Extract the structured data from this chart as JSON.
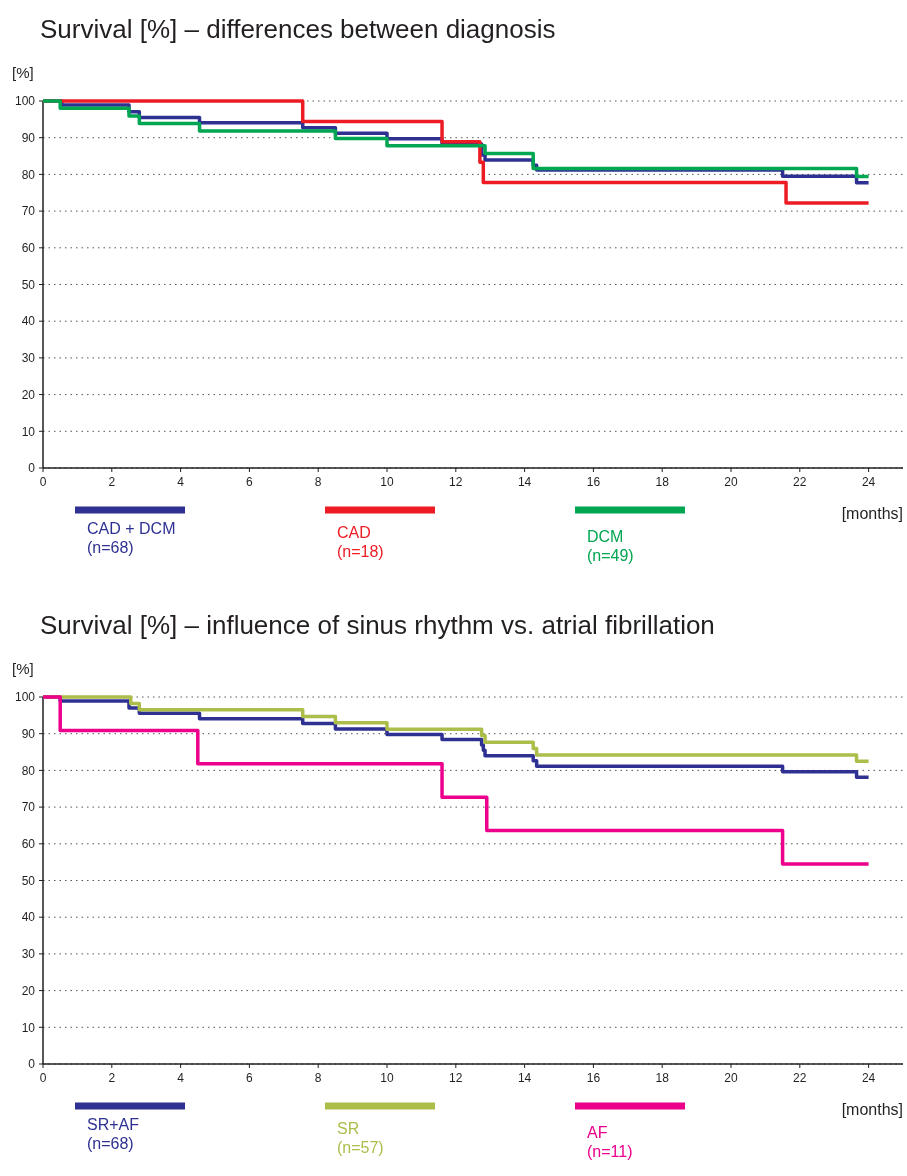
{
  "chart_data": [
    {
      "type": "step",
      "title": "Survival [%] – differences between diagnosis",
      "xlabel": "[months]",
      "ylabel": "[%]",
      "xlim": [
        0,
        25
      ],
      "xticks": [
        0,
        2,
        4,
        6,
        8,
        10,
        12,
        14,
        16,
        18,
        20,
        22,
        24
      ],
      "ylim": [
        0,
        100
      ],
      "yticks": [
        0,
        10,
        20,
        30,
        40,
        50,
        60,
        70,
        80,
        90,
        100
      ],
      "grid": "y",
      "legend": "bottom",
      "line_style": "solid",
      "series": [
        {
          "name": "CAD + DCM (n=68)",
          "color": "#2e3192",
          "x": [
            0,
            0.55,
            2.5,
            2.8,
            4.55,
            7.55,
            8.5,
            10,
            11.6,
            12.75,
            12.85,
            14.25,
            14.35,
            21.5,
            23.65,
            24
          ],
          "values": [
            100,
            98.9,
            97.1,
            95.5,
            94.1,
            92.7,
            91.2,
            89.7,
            88.3,
            85.3,
            83.9,
            82.5,
            81.2,
            79.5,
            77.7,
            77.7
          ]
        },
        {
          "name": "CAD (n=18)",
          "color": "#ed1c24",
          "x": [
            0,
            7.55,
            11.6,
            12.7,
            12.8,
            21.6,
            24
          ],
          "values": [
            100,
            94.4,
            88.9,
            83.3,
            77.8,
            72.2,
            72.2
          ]
        },
        {
          "name": "DCM (n=49)",
          "color": "#00a651",
          "x": [
            0,
            0.5,
            2.5,
            2.8,
            4.55,
            8.5,
            10,
            12.85,
            14.25,
            23.65,
            24
          ],
          "values": [
            100,
            98,
            95.9,
            93.9,
            91.8,
            89.8,
            87.8,
            85.7,
            81.6,
            79.4,
            79.4
          ]
        }
      ]
    },
    {
      "type": "step",
      "title": "Survival [%] – influence of sinus rhythm vs. atrial fibrillation",
      "xlabel": "[months]",
      "ylabel": "[%]",
      "xlim": [
        0,
        25
      ],
      "xticks": [
        0,
        2,
        4,
        6,
        8,
        10,
        12,
        14,
        16,
        18,
        20,
        22,
        24
      ],
      "ylim": [
        0,
        100
      ],
      "yticks": [
        0,
        10,
        20,
        30,
        40,
        50,
        60,
        70,
        80,
        90,
        100
      ],
      "grid": "y",
      "legend": "bottom",
      "line_style": "solid",
      "series": [
        {
          "name": "SR+AF (n=68)",
          "color": "#2e3192",
          "x": [
            0,
            0.5,
            2.5,
            2.8,
            4.55,
            7.55,
            8.5,
            10,
            11.6,
            12.75,
            12.8,
            12.85,
            14.25,
            14.35,
            21.5,
            23.65,
            24
          ],
          "values": [
            100,
            98.9,
            97,
            95.6,
            94.1,
            92.8,
            91.3,
            89.8,
            88.4,
            86.9,
            85.5,
            84,
            82.6,
            81.1,
            79.6,
            78.1,
            78.1
          ]
        },
        {
          "name": "SR (n=57)",
          "color": "#acbd4a",
          "x": [
            0,
            2.55,
            2.8,
            7.55,
            8.5,
            10,
            12.75,
            12.85,
            14.25,
            14.35,
            23.65,
            24
          ],
          "values": [
            100,
            98.2,
            96.5,
            94.7,
            93,
            91.2,
            89.5,
            87.7,
            86,
            84.2,
            82.5,
            82.5
          ]
        },
        {
          "name": "AF (n=11)",
          "color": "#ec008c",
          "x": [
            0,
            0.5,
            4.5,
            11.6,
            12.9,
            21.5,
            24
          ],
          "values": [
            100,
            90.9,
            81.8,
            72.7,
            63.6,
            54.5,
            54.5
          ]
        }
      ]
    }
  ]
}
